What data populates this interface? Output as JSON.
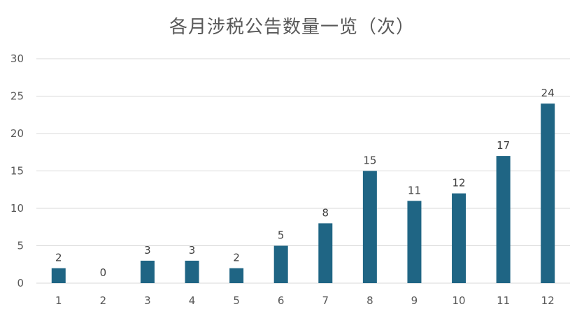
{
  "chart_data": {
    "type": "bar",
    "title": "各月涉税公告数量一览（次）",
    "categories": [
      "1",
      "2",
      "3",
      "4",
      "5",
      "6",
      "7",
      "8",
      "9",
      "10",
      "11",
      "12"
    ],
    "values": [
      2,
      0,
      3,
      3,
      2,
      5,
      8,
      15,
      11,
      12,
      17,
      24
    ],
    "yticks": [
      "0",
      "5",
      "10",
      "15",
      "20",
      "25",
      "30"
    ],
    "ylim": [
      0,
      30
    ],
    "grid": true,
    "bar_color": "#1f6584",
    "grid_color": "#d9d9d9",
    "show_data_labels": true
  }
}
